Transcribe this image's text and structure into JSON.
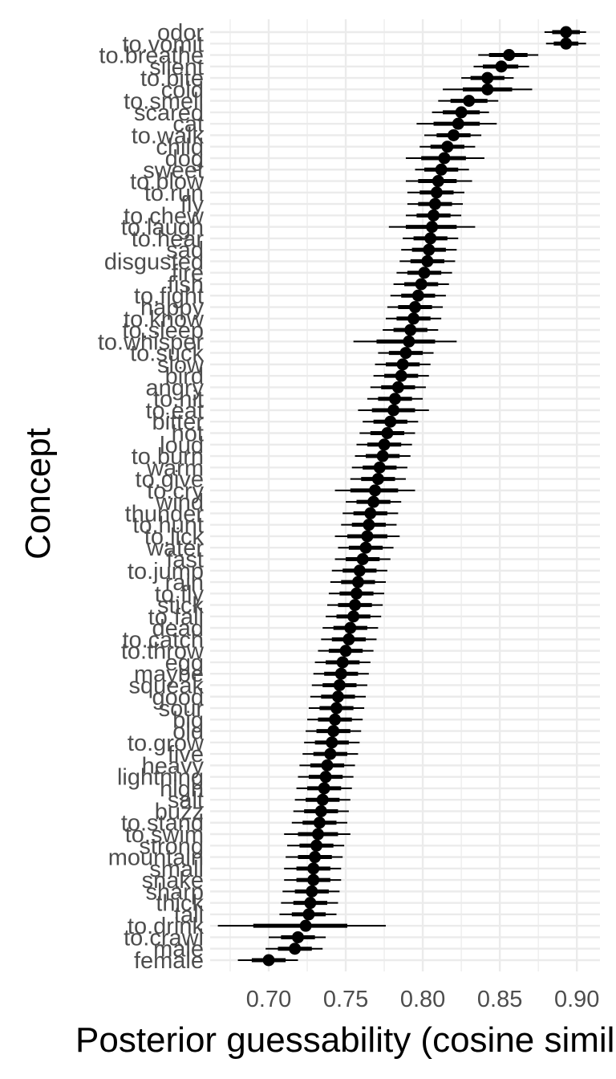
{
  "chart_data": {
    "type": "scatter",
    "xlabel": "Posterior guessability (cosine similarity)",
    "ylabel": "Concept",
    "xlim": [
      0.662,
      0.915
    ],
    "x_ticks": [
      "0.70",
      "0.75",
      "0.80",
      "0.85",
      "0.90"
    ],
    "x_tick_values": [
      0.7,
      0.75,
      0.8,
      0.85,
      0.9
    ],
    "grid": true,
    "colors": {
      "point": "#000000",
      "grid": "#ebebeb",
      "tick_text": "#4d4d4d",
      "title_text": "#000000"
    },
    "categories": [
      "odor",
      "to.vomit",
      "to.breathe",
      "silent",
      "to.bite",
      "cold",
      "to.smell",
      "scared",
      "cat",
      "to.walk",
      "child",
      "dog",
      "sweet",
      "to.blow",
      "to.run",
      "fly",
      "to.chew",
      "to.laugh",
      "to.hear",
      "sad",
      "disgusted",
      "fire",
      "fish",
      "to.fight",
      "happy",
      "to.know",
      "to.sleep",
      "to.whisper",
      "to.suck",
      "slow",
      "bird",
      "angry",
      "to.hit",
      "to.eat",
      "bitter",
      "hot",
      "loud",
      "to.burn",
      "warm",
      "to.give",
      "to.cry",
      "wind",
      "thunder",
      "to.hunt",
      "to.lick",
      "water",
      "fast",
      "to.jump",
      "rain",
      "to.fly",
      "stick",
      "to.fall",
      "dead",
      "to.catch",
      "to.throw",
      "egg",
      "maybe",
      "squeak",
      "good",
      "sour",
      "big",
      "old",
      "to.grow",
      "five",
      "heavy",
      "lightning",
      "high",
      "salt",
      "buzz",
      "to.stand",
      "to.swim",
      "strong",
      "mountain",
      "small",
      "snake",
      "sharp",
      "thick",
      "tall",
      "to.drink",
      "to.crawl",
      "male",
      "female"
    ],
    "points": [
      {
        "concept": "odor",
        "estimate": 0.893,
        "lo66": 0.884,
        "hi66": 0.902,
        "lo95": 0.879,
        "hi95": 0.906
      },
      {
        "concept": "to.vomit",
        "estimate": 0.893,
        "lo66": 0.885,
        "hi66": 0.901,
        "lo95": 0.88,
        "hi95": 0.906
      },
      {
        "concept": "to.breathe",
        "estimate": 0.856,
        "lo66": 0.843,
        "hi66": 0.868,
        "lo95": 0.836,
        "hi95": 0.875
      },
      {
        "concept": "silent",
        "estimate": 0.851,
        "lo66": 0.839,
        "hi66": 0.862,
        "lo95": 0.833,
        "hi95": 0.869
      },
      {
        "concept": "to.bite",
        "estimate": 0.842,
        "lo66": 0.831,
        "hi66": 0.853,
        "lo95": 0.825,
        "hi95": 0.859
      },
      {
        "concept": "cold",
        "estimate": 0.842,
        "lo66": 0.826,
        "hi66": 0.858,
        "lo95": 0.813,
        "hi95": 0.871
      },
      {
        "concept": "to.smell",
        "estimate": 0.83,
        "lo66": 0.818,
        "hi66": 0.842,
        "lo95": 0.81,
        "hi95": 0.849
      },
      {
        "concept": "scared",
        "estimate": 0.825,
        "lo66": 0.813,
        "hi66": 0.837,
        "lo95": 0.806,
        "hi95": 0.843
      },
      {
        "concept": "cat",
        "estimate": 0.823,
        "lo66": 0.807,
        "hi66": 0.837,
        "lo95": 0.796,
        "hi95": 0.848
      },
      {
        "concept": "to.walk",
        "estimate": 0.82,
        "lo66": 0.809,
        "hi66": 0.831,
        "lo95": 0.801,
        "hi95": 0.838
      },
      {
        "concept": "child",
        "estimate": 0.816,
        "lo66": 0.805,
        "hi66": 0.827,
        "lo95": 0.798,
        "hi95": 0.834
      },
      {
        "concept": "dog",
        "estimate": 0.814,
        "lo66": 0.799,
        "hi66": 0.828,
        "lo95": 0.789,
        "hi95": 0.84
      },
      {
        "concept": "sweet",
        "estimate": 0.812,
        "lo66": 0.801,
        "hi66": 0.823,
        "lo95": 0.795,
        "hi95": 0.83
      },
      {
        "concept": "to.blow",
        "estimate": 0.81,
        "lo66": 0.797,
        "hi66": 0.822,
        "lo95": 0.789,
        "hi95": 0.832
      },
      {
        "concept": "to.run",
        "estimate": 0.809,
        "lo66": 0.798,
        "hi66": 0.82,
        "lo95": 0.79,
        "hi95": 0.827
      },
      {
        "concept": "fly",
        "estimate": 0.808,
        "lo66": 0.797,
        "hi66": 0.819,
        "lo95": 0.79,
        "hi95": 0.826
      },
      {
        "concept": "to.chew",
        "estimate": 0.807,
        "lo66": 0.796,
        "hi66": 0.818,
        "lo95": 0.789,
        "hi95": 0.825
      },
      {
        "concept": "to.laugh",
        "estimate": 0.806,
        "lo66": 0.789,
        "hi66": 0.822,
        "lo95": 0.778,
        "hi95": 0.834
      },
      {
        "concept": "to.hear",
        "estimate": 0.805,
        "lo66": 0.794,
        "hi66": 0.816,
        "lo95": 0.787,
        "hi95": 0.823
      },
      {
        "concept": "sad",
        "estimate": 0.804,
        "lo66": 0.793,
        "hi66": 0.815,
        "lo95": 0.786,
        "hi95": 0.822
      },
      {
        "concept": "disgusted",
        "estimate": 0.803,
        "lo66": 0.792,
        "hi66": 0.814,
        "lo95": 0.785,
        "hi95": 0.821
      },
      {
        "concept": "fire",
        "estimate": 0.801,
        "lo66": 0.79,
        "hi66": 0.812,
        "lo95": 0.783,
        "hi95": 0.819
      },
      {
        "concept": "fish",
        "estimate": 0.799,
        "lo66": 0.788,
        "hi66": 0.81,
        "lo95": 0.781,
        "hi95": 0.817
      },
      {
        "concept": "to.fight",
        "estimate": 0.797,
        "lo66": 0.786,
        "hi66": 0.808,
        "lo95": 0.779,
        "hi95": 0.815
      },
      {
        "concept": "happy",
        "estimate": 0.795,
        "lo66": 0.784,
        "hi66": 0.806,
        "lo95": 0.777,
        "hi95": 0.813
      },
      {
        "concept": "to.know",
        "estimate": 0.794,
        "lo66": 0.783,
        "hi66": 0.805,
        "lo95": 0.776,
        "hi95": 0.812
      },
      {
        "concept": "to.sleep",
        "estimate": 0.792,
        "lo66": 0.781,
        "hi66": 0.803,
        "lo95": 0.774,
        "hi95": 0.81
      },
      {
        "concept": "to.whisper",
        "estimate": 0.791,
        "lo66": 0.77,
        "hi66": 0.808,
        "lo95": 0.755,
        "hi95": 0.822
      },
      {
        "concept": "to.suck",
        "estimate": 0.789,
        "lo66": 0.778,
        "hi66": 0.8,
        "lo95": 0.771,
        "hi95": 0.807
      },
      {
        "concept": "slow",
        "estimate": 0.787,
        "lo66": 0.776,
        "hi66": 0.798,
        "lo95": 0.769,
        "hi95": 0.805
      },
      {
        "concept": "bird",
        "estimate": 0.786,
        "lo66": 0.775,
        "hi66": 0.797,
        "lo95": 0.768,
        "hi95": 0.804
      },
      {
        "concept": "angry",
        "estimate": 0.784,
        "lo66": 0.773,
        "hi66": 0.795,
        "lo95": 0.766,
        "hi95": 0.802
      },
      {
        "concept": "to.hit",
        "estimate": 0.782,
        "lo66": 0.771,
        "hi66": 0.793,
        "lo95": 0.764,
        "hi95": 0.8
      },
      {
        "concept": "to.eat",
        "estimate": 0.781,
        "lo66": 0.767,
        "hi66": 0.795,
        "lo95": 0.758,
        "hi95": 0.804
      },
      {
        "concept": "bitter",
        "estimate": 0.779,
        "lo66": 0.768,
        "hi66": 0.79,
        "lo95": 0.761,
        "hi95": 0.797
      },
      {
        "concept": "hot",
        "estimate": 0.777,
        "lo66": 0.766,
        "hi66": 0.788,
        "lo95": 0.759,
        "hi95": 0.795
      },
      {
        "concept": "loud",
        "estimate": 0.775,
        "lo66": 0.764,
        "hi66": 0.786,
        "lo95": 0.757,
        "hi95": 0.793
      },
      {
        "concept": "to.burn",
        "estimate": 0.774,
        "lo66": 0.763,
        "hi66": 0.785,
        "lo95": 0.756,
        "hi95": 0.792
      },
      {
        "concept": "warm",
        "estimate": 0.772,
        "lo66": 0.761,
        "hi66": 0.783,
        "lo95": 0.754,
        "hi95": 0.79
      },
      {
        "concept": "to.give",
        "estimate": 0.771,
        "lo66": 0.76,
        "hi66": 0.782,
        "lo95": 0.753,
        "hi95": 0.789
      },
      {
        "concept": "to.cry",
        "estimate": 0.769,
        "lo66": 0.753,
        "hi66": 0.784,
        "lo95": 0.743,
        "hi95": 0.795
      },
      {
        "concept": "wind",
        "estimate": 0.768,
        "lo66": 0.757,
        "hi66": 0.779,
        "lo95": 0.75,
        "hi95": 0.786
      },
      {
        "concept": "thunder",
        "estimate": 0.766,
        "lo66": 0.755,
        "hi66": 0.777,
        "lo95": 0.748,
        "hi95": 0.784
      },
      {
        "concept": "to.hunt",
        "estimate": 0.765,
        "lo66": 0.754,
        "hi66": 0.776,
        "lo95": 0.747,
        "hi95": 0.783
      },
      {
        "concept": "to.lick",
        "estimate": 0.764,
        "lo66": 0.751,
        "hi66": 0.777,
        "lo95": 0.743,
        "hi95": 0.785
      },
      {
        "concept": "water",
        "estimate": 0.763,
        "lo66": 0.752,
        "hi66": 0.774,
        "lo95": 0.745,
        "hi95": 0.781
      },
      {
        "concept": "fast",
        "estimate": 0.761,
        "lo66": 0.75,
        "hi66": 0.772,
        "lo95": 0.743,
        "hi95": 0.779
      },
      {
        "concept": "to.jump",
        "estimate": 0.759,
        "lo66": 0.748,
        "hi66": 0.77,
        "lo95": 0.741,
        "hi95": 0.777
      },
      {
        "concept": "rain",
        "estimate": 0.758,
        "lo66": 0.747,
        "hi66": 0.769,
        "lo95": 0.74,
        "hi95": 0.776
      },
      {
        "concept": "to.fly",
        "estimate": 0.757,
        "lo66": 0.746,
        "hi66": 0.768,
        "lo95": 0.739,
        "hi95": 0.775
      },
      {
        "concept": "stick",
        "estimate": 0.756,
        "lo66": 0.745,
        "hi66": 0.767,
        "lo95": 0.738,
        "hi95": 0.774
      },
      {
        "concept": "to.fall",
        "estimate": 0.755,
        "lo66": 0.744,
        "hi66": 0.766,
        "lo95": 0.737,
        "hi95": 0.773
      },
      {
        "concept": "dead",
        "estimate": 0.753,
        "lo66": 0.742,
        "hi66": 0.764,
        "lo95": 0.735,
        "hi95": 0.771
      },
      {
        "concept": "to.catch",
        "estimate": 0.752,
        "lo66": 0.741,
        "hi66": 0.763,
        "lo95": 0.734,
        "hi95": 0.77
      },
      {
        "concept": "to.throw",
        "estimate": 0.75,
        "lo66": 0.739,
        "hi66": 0.761,
        "lo95": 0.732,
        "hi95": 0.768
      },
      {
        "concept": "egg",
        "estimate": 0.748,
        "lo66": 0.737,
        "hi66": 0.759,
        "lo95": 0.73,
        "hi95": 0.766
      },
      {
        "concept": "maybe",
        "estimate": 0.747,
        "lo66": 0.736,
        "hi66": 0.758,
        "lo95": 0.729,
        "hi95": 0.765
      },
      {
        "concept": "squeak",
        "estimate": 0.746,
        "lo66": 0.735,
        "hi66": 0.757,
        "lo95": 0.728,
        "hi95": 0.764
      },
      {
        "concept": "good",
        "estimate": 0.745,
        "lo66": 0.734,
        "hi66": 0.756,
        "lo95": 0.727,
        "hi95": 0.763
      },
      {
        "concept": "sour",
        "estimate": 0.744,
        "lo66": 0.733,
        "hi66": 0.755,
        "lo95": 0.726,
        "hi95": 0.762
      },
      {
        "concept": "big",
        "estimate": 0.743,
        "lo66": 0.732,
        "hi66": 0.754,
        "lo95": 0.725,
        "hi95": 0.761
      },
      {
        "concept": "old",
        "estimate": 0.742,
        "lo66": 0.731,
        "hi66": 0.753,
        "lo95": 0.724,
        "hi95": 0.76
      },
      {
        "concept": "to.grow",
        "estimate": 0.741,
        "lo66": 0.73,
        "hi66": 0.752,
        "lo95": 0.723,
        "hi95": 0.759
      },
      {
        "concept": "five",
        "estimate": 0.74,
        "lo66": 0.729,
        "hi66": 0.751,
        "lo95": 0.722,
        "hi95": 0.758
      },
      {
        "concept": "heavy",
        "estimate": 0.738,
        "lo66": 0.727,
        "hi66": 0.749,
        "lo95": 0.72,
        "hi95": 0.756
      },
      {
        "concept": "lightning",
        "estimate": 0.737,
        "lo66": 0.726,
        "hi66": 0.748,
        "lo95": 0.719,
        "hi95": 0.755
      },
      {
        "concept": "high",
        "estimate": 0.736,
        "lo66": 0.725,
        "hi66": 0.747,
        "lo95": 0.718,
        "hi95": 0.754
      },
      {
        "concept": "salt",
        "estimate": 0.735,
        "lo66": 0.724,
        "hi66": 0.746,
        "lo95": 0.717,
        "hi95": 0.753
      },
      {
        "concept": "buzz",
        "estimate": 0.734,
        "lo66": 0.723,
        "hi66": 0.745,
        "lo95": 0.716,
        "hi95": 0.752
      },
      {
        "concept": "to.stand",
        "estimate": 0.733,
        "lo66": 0.722,
        "hi66": 0.744,
        "lo95": 0.715,
        "hi95": 0.751
      },
      {
        "concept": "to.swim",
        "estimate": 0.732,
        "lo66": 0.719,
        "hi66": 0.745,
        "lo95": 0.71,
        "hi95": 0.753
      },
      {
        "concept": "strong",
        "estimate": 0.731,
        "lo66": 0.72,
        "hi66": 0.742,
        "lo95": 0.712,
        "hi95": 0.749
      },
      {
        "concept": "mountain",
        "estimate": 0.73,
        "lo66": 0.719,
        "hi66": 0.741,
        "lo95": 0.711,
        "hi95": 0.748
      },
      {
        "concept": "small",
        "estimate": 0.729,
        "lo66": 0.718,
        "hi66": 0.74,
        "lo95": 0.71,
        "hi95": 0.747
      },
      {
        "concept": "snake",
        "estimate": 0.729,
        "lo66": 0.718,
        "hi66": 0.74,
        "lo95": 0.71,
        "hi95": 0.747
      },
      {
        "concept": "sharp",
        "estimate": 0.728,
        "lo66": 0.717,
        "hi66": 0.739,
        "lo95": 0.709,
        "hi95": 0.746
      },
      {
        "concept": "thick",
        "estimate": 0.727,
        "lo66": 0.716,
        "hi66": 0.738,
        "lo95": 0.708,
        "hi95": 0.745
      },
      {
        "concept": "tall",
        "estimate": 0.726,
        "lo66": 0.715,
        "hi66": 0.737,
        "lo95": 0.707,
        "hi95": 0.744
      },
      {
        "concept": "to.drink",
        "estimate": 0.724,
        "lo66": 0.69,
        "hi66": 0.751,
        "lo95": 0.667,
        "hi95": 0.776
      },
      {
        "concept": "to.crawl",
        "estimate": 0.719,
        "lo66": 0.708,
        "hi66": 0.73,
        "lo95": 0.7,
        "hi95": 0.737
      },
      {
        "concept": "male",
        "estimate": 0.717,
        "lo66": 0.706,
        "hi66": 0.728,
        "lo95": 0.698,
        "hi95": 0.735
      },
      {
        "concept": "female",
        "estimate": 0.7,
        "lo66": 0.689,
        "hi66": 0.711,
        "lo95": 0.68,
        "hi95": 0.719
      }
    ]
  }
}
